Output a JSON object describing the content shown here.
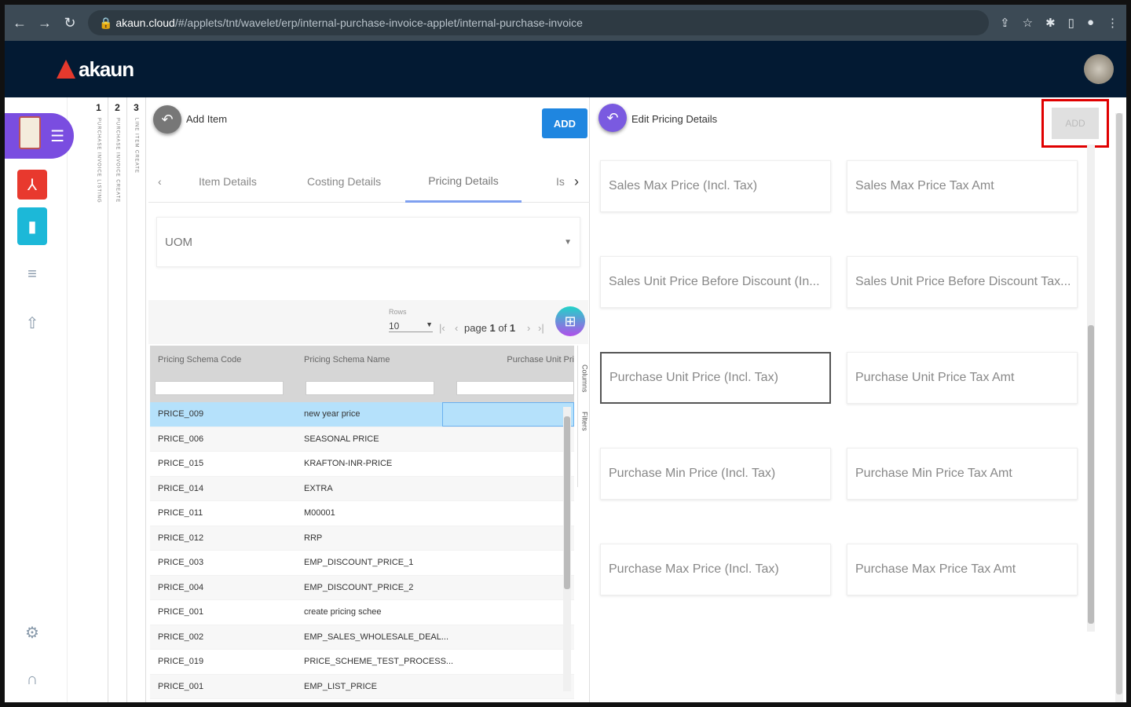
{
  "browser": {
    "url_host": "akaun.cloud",
    "url_path": "/#/applets/tnt/wavelet/erp/internal-purchase-invoice-applet/internal-purchase-invoice"
  },
  "app": {
    "logo": "akaun"
  },
  "vertical_tabs": [
    {
      "n": "1",
      "label": "PURCHASE INVOICE LISTING"
    },
    {
      "n": "2",
      "label": "PURCHASE INVOICE CREATE"
    },
    {
      "n": "3",
      "label": "LINE ITEM CREATE"
    }
  ],
  "left_panel": {
    "title": "Add Item",
    "add_label": "ADD",
    "tabs": [
      "Item Details",
      "Costing Details",
      "Pricing Details",
      "Is"
    ],
    "active_tab": "Pricing Details",
    "uom_placeholder": "UOM",
    "pager": {
      "rows_label": "Rows",
      "rows_value": "10",
      "page_text": "page",
      "page": "1",
      "of": "of",
      "total": "1"
    },
    "columns": [
      "Pricing Schema Code",
      "Pricing Schema Name",
      "Purchase Unit Pri"
    ],
    "side_tools": [
      "Columns",
      "Filters"
    ],
    "rows": [
      [
        "PRICE_009",
        "new year price"
      ],
      [
        "PRICE_006",
        "SEASONAL PRICE"
      ],
      [
        "PRICE_015",
        "KRAFTON-INR-PRICE"
      ],
      [
        "PRICE_014",
        "EXTRA"
      ],
      [
        "PRICE_011",
        "M00001"
      ],
      [
        "PRICE_012",
        "RRP"
      ],
      [
        "PRICE_003",
        "EMP_DISCOUNT_PRICE_1"
      ],
      [
        "PRICE_004",
        "EMP_DISCOUNT_PRICE_2"
      ],
      [
        "PRICE_001",
        "create pricing schee"
      ],
      [
        "PRICE_002",
        "EMP_SALES_WHOLESALE_DEAL..."
      ],
      [
        "PRICE_019",
        "PRICE_SCHEME_TEST_PROCESS..."
      ],
      [
        "PRICE_001",
        "EMP_LIST_PRICE"
      ]
    ]
  },
  "right_panel": {
    "title": "Edit Pricing Details",
    "add_label": "ADD",
    "fields": [
      "Sales Max Price (Incl. Tax)",
      "Sales Max Price Tax Amt",
      "Sales Unit Price Before Discount (In...",
      "Sales Unit Price Before Discount Tax...",
      "Purchase Unit Price (Incl. Tax)",
      "Purchase Unit Price Tax Amt",
      "Purchase Min Price (Incl. Tax)",
      "Purchase Min Price Tax Amt",
      "Purchase Max Price (Incl. Tax)",
      "Purchase Max Price Tax Amt"
    ],
    "focused_field": "Purchase Unit Price (Incl. Tax)"
  },
  "colors": {
    "appbar": "#031a33",
    "accent": "#1f86e0",
    "highlight": "#e00000",
    "selected_row": "#b5e1fb"
  }
}
